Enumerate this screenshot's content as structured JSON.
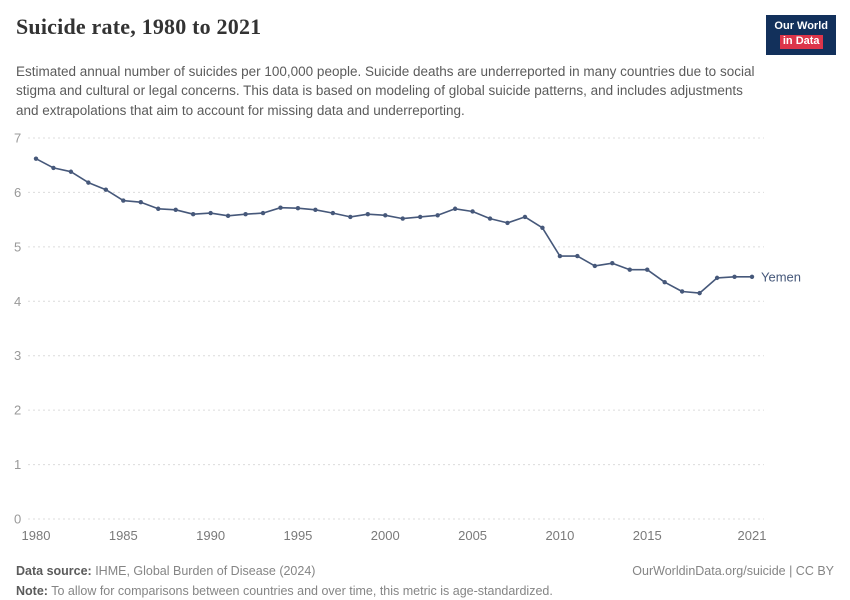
{
  "header": {
    "title": "Suicide rate, 1980 to 2021",
    "subtitle": "Estimated annual number of suicides per 100,000 people. Suicide deaths are underreported in many countries due to social stigma and cultural or legal concerns. This data is based on modeling of global suicide patterns, and includes adjustments and extrapolations that aim to account for missing data and underreporting.",
    "logo_line1": "Our World",
    "logo_line2": "in Data",
    "logo_bg": "#12305b",
    "logo_accent": "#dc354a"
  },
  "chart_data": {
    "type": "line",
    "title": "Suicide rate, 1980 to 2021",
    "xlabel": "",
    "ylabel": "Estimated annual suicides per 100,000 people",
    "xlim": [
      1980,
      2021
    ],
    "ylim": [
      0,
      7
    ],
    "yticks": [
      0,
      1,
      2,
      3,
      4,
      5,
      6,
      7
    ],
    "xticks": [
      1980,
      1985,
      1990,
      1995,
      2000,
      2005,
      2010,
      2015,
      2021
    ],
    "grid": "dashed-horizontal",
    "legend_position": "end-of-line-label",
    "end_label": "Yemen",
    "series": [
      {
        "name": "Yemen",
        "color": "#46587a",
        "x": [
          1980,
          1981,
          1982,
          1983,
          1984,
          1985,
          1986,
          1987,
          1988,
          1989,
          1990,
          1991,
          1992,
          1993,
          1994,
          1995,
          1996,
          1997,
          1998,
          1999,
          2000,
          2001,
          2002,
          2003,
          2004,
          2005,
          2006,
          2007,
          2008,
          2009,
          2010,
          2011,
          2012,
          2013,
          2014,
          2015,
          2016,
          2017,
          2018,
          2019,
          2020,
          2021
        ],
        "values": [
          6.62,
          6.45,
          6.38,
          6.18,
          6.05,
          5.85,
          5.82,
          5.7,
          5.68,
          5.6,
          5.62,
          5.57,
          5.6,
          5.62,
          5.72,
          5.71,
          5.68,
          5.62,
          5.55,
          5.6,
          5.58,
          5.52,
          5.55,
          5.58,
          5.7,
          5.65,
          5.52,
          5.44,
          5.55,
          5.35,
          4.83,
          4.83,
          4.65,
          4.7,
          4.58,
          4.58,
          4.35,
          4.18,
          4.15,
          4.43,
          4.45,
          4.45
        ]
      }
    ]
  },
  "footer": {
    "data_source_label": "Data source:",
    "data_source_text": " IHME, Global Burden of Disease (2024)",
    "link_text": "OurWorldinData.org/suicide | CC BY",
    "note_label": "Note:",
    "note_text": " To allow for comparisons between countries and over time, this metric is age-standardized."
  }
}
